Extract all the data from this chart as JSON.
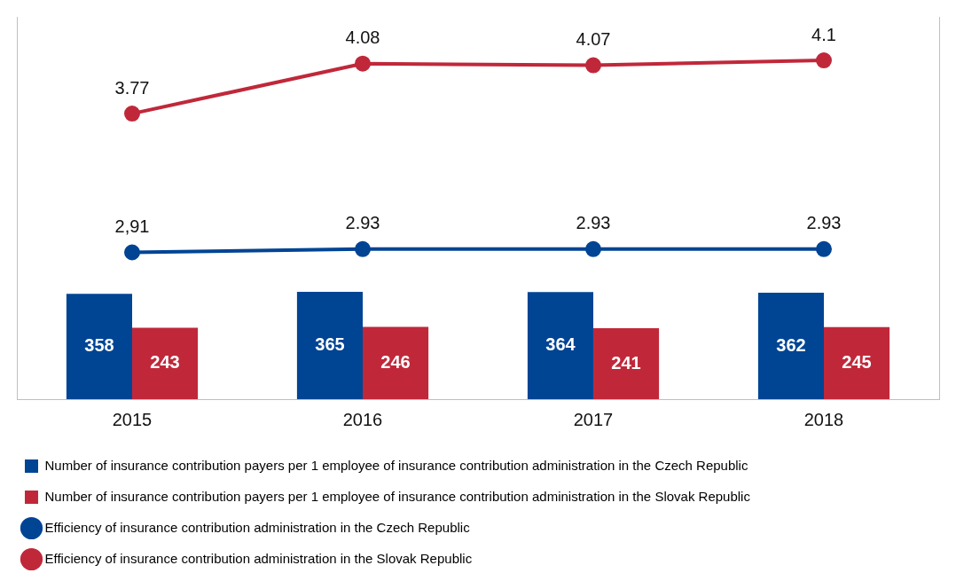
{
  "chart_data": {
    "type": "bar",
    "categories": [
      "2015",
      "2016",
      "2017",
      "2018"
    ],
    "series": [
      {
        "name": "Number of insurance contribution payers per 1 employee of insurance contribution administration in the Czech Republic",
        "color": "#004494",
        "values": [
          358,
          365,
          364,
          362
        ]
      },
      {
        "name": "Number of insurance contribution payers per 1 employee of insurance contribution administration in the Slovak Republic",
        "color": "#c0283a",
        "values": [
          243,
          246,
          241,
          245
        ]
      },
      {
        "name": "Efficiency of insurance contribution administration in the Czech Republic",
        "type": "line",
        "axis": "y2",
        "color": "#004494",
        "values": [
          2.91,
          2.93,
          2.93,
          2.93
        ],
        "value_labels": [
          "2,91",
          "2.93",
          "2.93",
          "2.93"
        ]
      },
      {
        "name": "Efficiency of insurance contribution administration in the Slovak Republic",
        "type": "line",
        "axis": "y2",
        "color": "#c0283a",
        "values": [
          3.77,
          4.08,
          4.07,
          4.1
        ]
      }
    ],
    "ylim": [
      0,
      1300
    ],
    "y2lim": [
      2,
      4.37
    ],
    "data_labels": true,
    "grid": false,
    "legend": "bottom",
    "marker": "circle",
    "line_style": "solid"
  }
}
